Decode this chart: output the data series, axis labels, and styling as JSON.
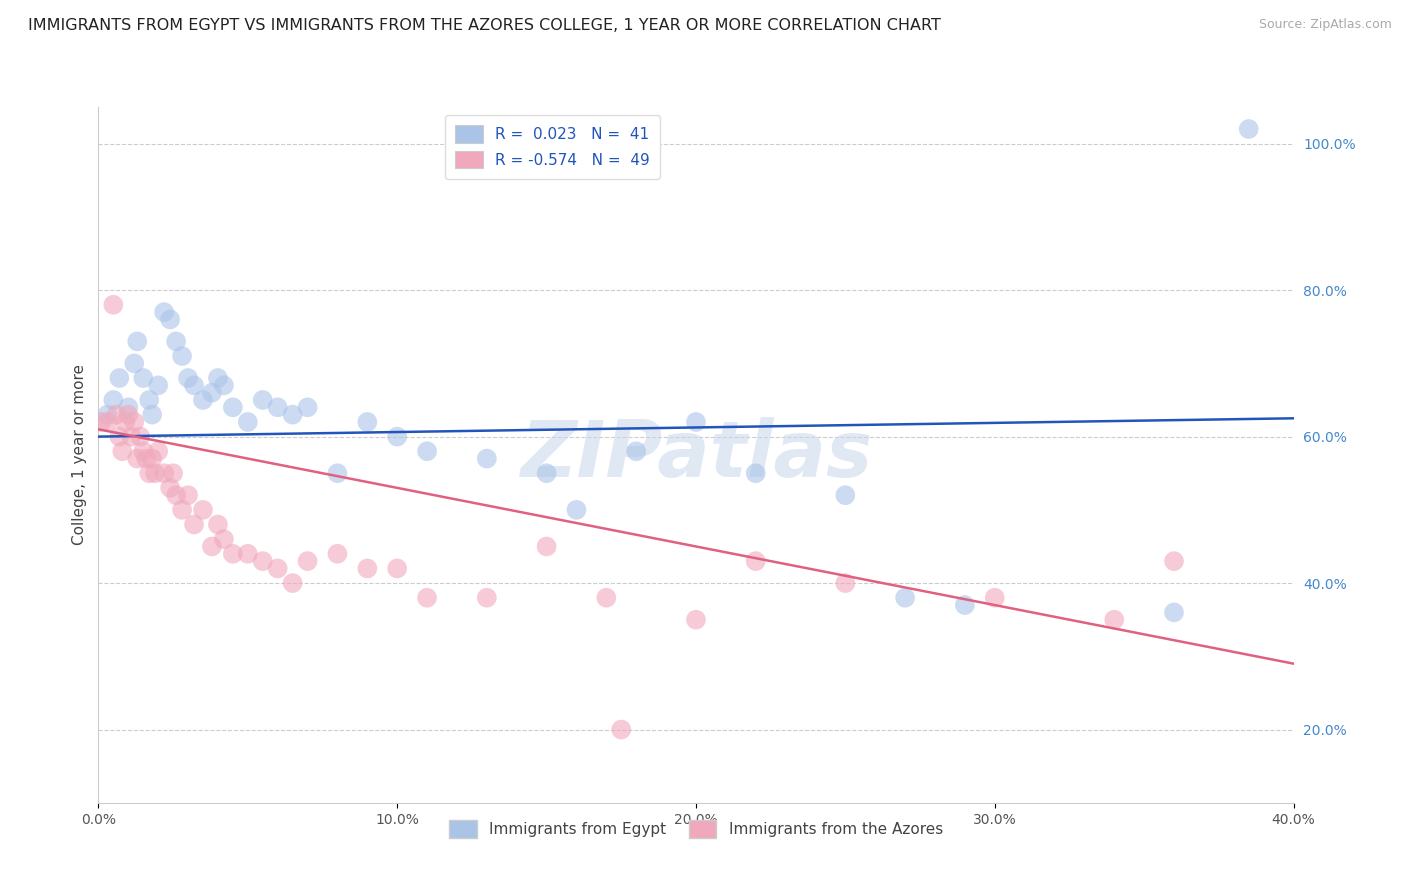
{
  "title": "IMMIGRANTS FROM EGYPT VS IMMIGRANTS FROM THE AZORES COLLEGE, 1 YEAR OR MORE CORRELATION CHART",
  "source": "Source: ZipAtlas.com",
  "ylabel": "College, 1 year or more",
  "xlim": [
    0.0,
    0.4
  ],
  "ylim": [
    0.1,
    1.05
  ],
  "xticks": [
    0.0,
    0.1,
    0.2,
    0.3,
    0.4
  ],
  "xtick_labels": [
    "0.0%",
    "10.0%",
    "20.0%",
    "30.0%",
    "40.0%"
  ],
  "yticks": [
    0.2,
    0.4,
    0.6,
    0.8,
    1.0
  ],
  "ytick_labels": [
    "20.0%",
    "40.0%",
    "60.0%",
    "80.0%",
    "100.0%"
  ],
  "legend_entries": [
    {
      "label": "Immigrants from Egypt",
      "color": "#aac4e8",
      "R": "0.023",
      "N": "41"
    },
    {
      "label": "Immigrants from the Azores",
      "color": "#f0a8bc",
      "R": "-0.574",
      "N": "49"
    }
  ],
  "blue_scatter_x": [
    0.003,
    0.005,
    0.007,
    0.01,
    0.012,
    0.013,
    0.015,
    0.017,
    0.018,
    0.02,
    0.022,
    0.024,
    0.026,
    0.028,
    0.03,
    0.032,
    0.035,
    0.038,
    0.04,
    0.042,
    0.045,
    0.05,
    0.055,
    0.06,
    0.065,
    0.07,
    0.08,
    0.09,
    0.1,
    0.11,
    0.13,
    0.15,
    0.16,
    0.18,
    0.2,
    0.22,
    0.25,
    0.27,
    0.29,
    0.36,
    0.385
  ],
  "blue_scatter_y": [
    0.63,
    0.65,
    0.68,
    0.64,
    0.7,
    0.73,
    0.68,
    0.65,
    0.63,
    0.67,
    0.77,
    0.76,
    0.73,
    0.71,
    0.68,
    0.67,
    0.65,
    0.66,
    0.68,
    0.67,
    0.64,
    0.62,
    0.65,
    0.64,
    0.63,
    0.64,
    0.55,
    0.62,
    0.6,
    0.58,
    0.57,
    0.55,
    0.5,
    0.58,
    0.62,
    0.55,
    0.52,
    0.38,
    0.37,
    0.36,
    1.02
  ],
  "pink_scatter_x": [
    0.001,
    0.003,
    0.005,
    0.006,
    0.007,
    0.008,
    0.009,
    0.01,
    0.011,
    0.012,
    0.013,
    0.014,
    0.015,
    0.016,
    0.017,
    0.018,
    0.019,
    0.02,
    0.022,
    0.024,
    0.025,
    0.026,
    0.028,
    0.03,
    0.032,
    0.035,
    0.038,
    0.04,
    0.042,
    0.045,
    0.05,
    0.055,
    0.06,
    0.065,
    0.07,
    0.08,
    0.09,
    0.1,
    0.11,
    0.13,
    0.15,
    0.17,
    0.2,
    0.22,
    0.25,
    0.3,
    0.34,
    0.36,
    0.175
  ],
  "pink_scatter_y": [
    0.62,
    0.62,
    0.78,
    0.63,
    0.6,
    0.58,
    0.62,
    0.63,
    0.6,
    0.62,
    0.57,
    0.6,
    0.58,
    0.57,
    0.55,
    0.57,
    0.55,
    0.58,
    0.55,
    0.53,
    0.55,
    0.52,
    0.5,
    0.52,
    0.48,
    0.5,
    0.45,
    0.48,
    0.46,
    0.44,
    0.44,
    0.43,
    0.42,
    0.4,
    0.43,
    0.44,
    0.42,
    0.42,
    0.38,
    0.38,
    0.45,
    0.38,
    0.35,
    0.43,
    0.4,
    0.38,
    0.35,
    0.43,
    0.2
  ],
  "blue_line_x": [
    0.0,
    0.4
  ],
  "blue_line_y": [
    0.6,
    0.625
  ],
  "pink_line_x": [
    0.0,
    0.4
  ],
  "pink_line_y": [
    0.61,
    0.29
  ],
  "watermark": "ZIPatlas",
  "background_color": "#ffffff",
  "grid_color": "#cccccc",
  "title_fontsize": 11.5,
  "axis_label_fontsize": 11,
  "tick_fontsize": 10,
  "scatter_alpha": 0.6,
  "scatter_size": 200
}
